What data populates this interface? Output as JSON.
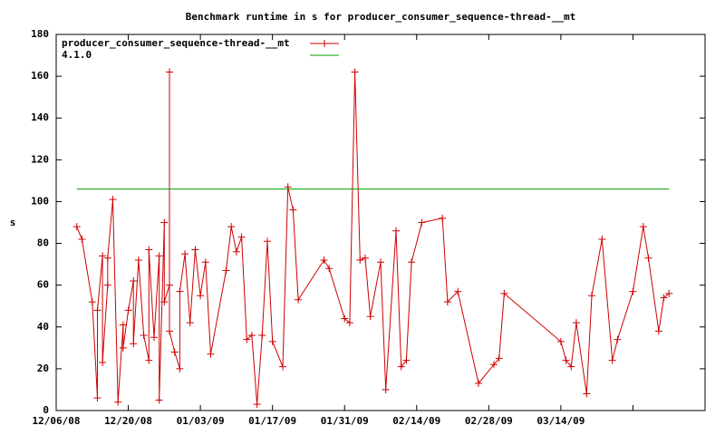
{
  "chart_data": {
    "type": "line",
    "title": "Benchmark runtime in s for producer_consumer_sequence-thread-__mt",
    "ylabel": "s",
    "xlim": [
      "2008-12-06",
      "2009-04-11"
    ],
    "xticks": [
      {
        "value": "2008-12-06",
        "label": "12/06/08"
      },
      {
        "value": "2008-12-20",
        "label": "12/20/08"
      },
      {
        "value": "2009-01-03",
        "label": "01/03/09"
      },
      {
        "value": "2009-01-17",
        "label": "01/17/09"
      },
      {
        "value": "2009-01-31",
        "label": "01/31/09"
      },
      {
        "value": "2009-02-14",
        "label": "02/14/09"
      },
      {
        "value": "2009-02-28",
        "label": "02/28/09"
      },
      {
        "value": "2009-03-14",
        "label": "03/14/09"
      },
      {
        "value": "2009-03-28",
        "label": null
      }
    ],
    "ylim": [
      0,
      180
    ],
    "yticks": [
      0,
      20,
      40,
      60,
      80,
      100,
      120,
      140,
      160,
      180
    ],
    "grid": false,
    "legend": "top-left",
    "series": [
      {
        "name": "producer_consumer_sequence-thread-__mt",
        "color": "#d00000",
        "markers": true,
        "x": [
          "2008-12-10",
          "2008-12-11",
          "2008-12-13",
          "2008-12-14",
          "2008-12-14",
          "2008-12-15",
          "2008-12-15",
          "2008-12-16",
          "2008-12-16",
          "2008-12-17",
          "2008-12-18",
          "2008-12-19",
          "2008-12-19",
          "2008-12-20",
          "2008-12-21",
          "2008-12-21",
          "2008-12-22",
          "2008-12-23",
          "2008-12-24",
          "2008-12-24",
          "2008-12-25",
          "2008-12-26",
          "2008-12-26",
          "2008-12-27",
          "2008-12-27",
          "2008-12-28",
          "2008-12-28",
          "2008-12-28",
          "2008-12-29",
          "2008-12-30",
          "2008-12-30",
          "2008-12-31",
          "2009-01-01",
          "2009-01-02",
          "2009-01-03",
          "2009-01-04",
          "2009-01-05",
          "2009-01-08",
          "2009-01-09",
          "2009-01-10",
          "2009-01-11",
          "2009-01-12",
          "2009-01-13",
          "2009-01-14",
          "2009-01-15",
          "2009-01-16",
          "2009-01-17",
          "2009-01-19",
          "2009-01-20",
          "2009-01-21",
          "2009-01-22",
          "2009-01-27",
          "2009-01-28",
          "2009-01-31",
          "2009-02-01",
          "2009-02-02",
          "2009-02-03",
          "2009-02-04",
          "2009-02-05",
          "2009-02-07",
          "2009-02-08",
          "2009-02-10",
          "2009-02-11",
          "2009-02-12",
          "2009-02-13",
          "2009-02-15",
          "2009-02-19",
          "2009-02-20",
          "2009-02-22",
          "2009-02-26",
          "2009-03-01",
          "2009-03-02",
          "2009-03-03",
          "2009-03-14",
          "2009-03-15",
          "2009-03-16",
          "2009-03-17",
          "2009-03-19",
          "2009-03-20",
          "2009-03-22",
          "2009-03-24",
          "2009-03-25",
          "2009-03-28",
          "2009-03-30",
          "2009-03-31",
          "2009-04-02",
          "2009-04-03",
          "2009-04-04"
        ],
        "values": [
          88,
          82,
          52,
          6,
          48,
          74,
          23,
          60,
          73,
          101,
          4,
          41,
          30,
          48,
          62,
          32,
          72,
          36,
          24,
          77,
          35,
          74,
          5,
          90,
          52,
          60,
          162,
          38,
          28,
          20,
          57,
          75,
          42,
          77,
          55,
          71,
          27,
          67,
          88,
          76,
          83,
          34,
          36,
          3,
          36,
          81,
          33,
          21,
          107,
          96,
          53,
          72,
          68,
          44,
          42,
          162,
          72,
          73,
          45,
          71,
          10,
          86,
          21,
          24,
          71,
          90,
          92,
          52,
          57,
          13,
          22,
          25,
          56,
          33,
          24,
          21,
          42,
          8,
          55,
          82,
          24,
          34,
          57,
          88,
          73,
          38,
          54,
          56
        ]
      },
      {
        "name": "4.1.0",
        "color": "#00a000",
        "markers": false,
        "x": [
          "2008-12-10",
          "2009-04-04"
        ],
        "values": [
          106,
          106
        ]
      }
    ]
  }
}
